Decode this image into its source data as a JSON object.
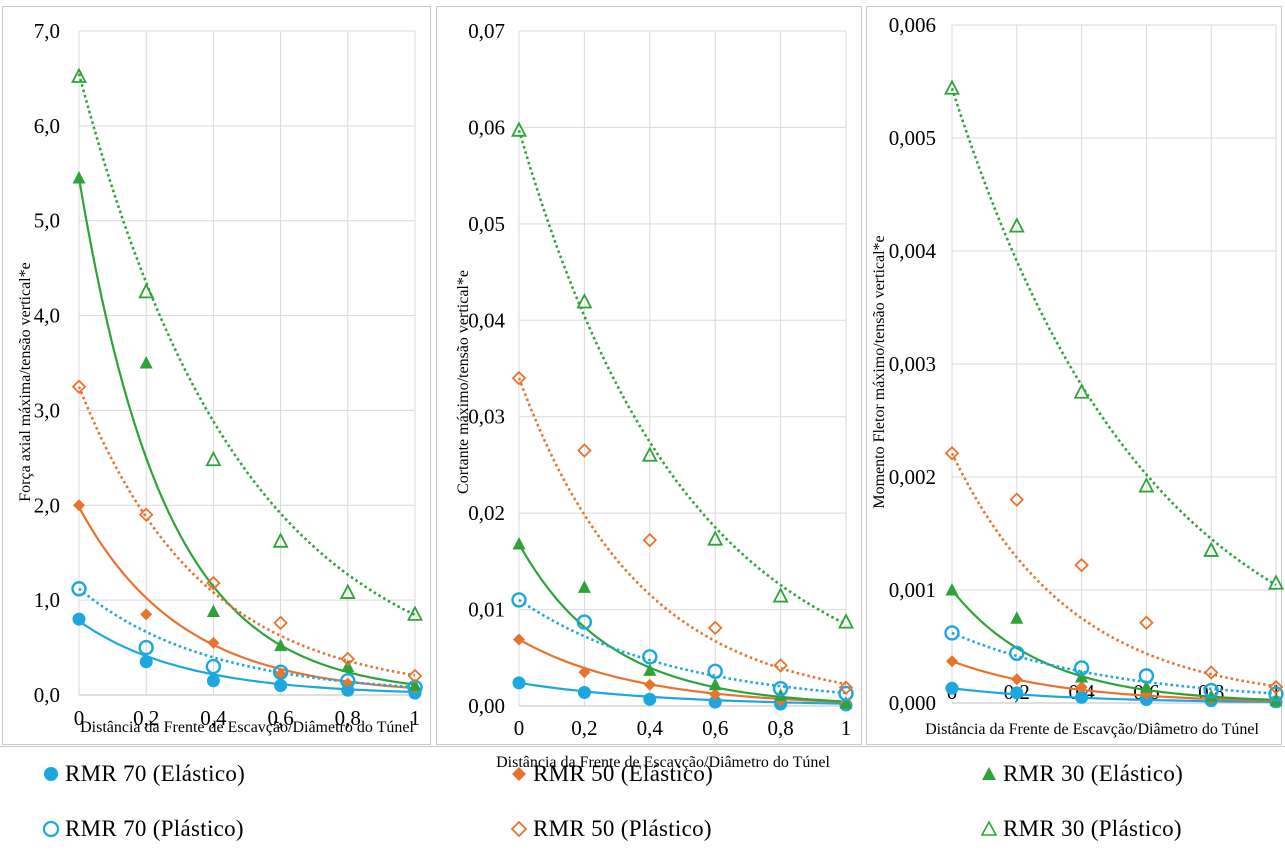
{
  "colors": {
    "rmr70": "#1ca7e0",
    "rmr50": "#e8732e",
    "rmr30": "#2ea33a",
    "grid": "#d9d9d9",
    "frame": "#c8c8c8"
  },
  "legend": [
    {
      "label": "RMR 70 (Elástico)",
      "marker": "filled-circle",
      "color": "#1ca7e0"
    },
    {
      "label": "RMR 50 (Elástico)",
      "marker": "filled-diamond",
      "color": "#e8732e"
    },
    {
      "label": "RMR 30 (Elástico)",
      "marker": "filled-triangle",
      "color": "#2ea33a"
    },
    {
      "label": "RMR 70 (Plástico)",
      "marker": "open-circle",
      "color": "#1ca7e0"
    },
    {
      "label": "RMR 50 (Plástico)",
      "marker": "open-diamond",
      "color": "#e8732e"
    },
    {
      "label": "RMR 30 (Plástico)",
      "marker": "open-triangle",
      "color": "#2ea33a"
    }
  ],
  "chart_data": [
    {
      "type": "scatter",
      "xlabel": "Distância da Frente de Escavção/Diâmetro do Túnel",
      "ylabel": "Força axial máxima/tensão vertical*e",
      "xlim": [
        0,
        1
      ],
      "ylim": [
        0,
        7
      ],
      "xticks": [
        "0",
        "0,2",
        "0,4",
        "0,6",
        "0,8",
        "1"
      ],
      "yticks": [
        "0,0",
        "1,0",
        "2,0",
        "3,0",
        "4,0",
        "5,0",
        "6,0",
        "7,0"
      ],
      "grid": true,
      "x": [
        0,
        0.2,
        0.4,
        0.6,
        0.8,
        1
      ],
      "series": [
        {
          "name": "RMR 70 (Elástico)",
          "values": [
            0.8,
            0.35,
            0.15,
            0.1,
            0.05,
            0.02
          ]
        },
        {
          "name": "RMR 50 (Elástico)",
          "values": [
            2.0,
            0.85,
            0.55,
            0.22,
            0.12,
            0.06
          ]
        },
        {
          "name": "RMR 30 (Elástico)",
          "values": [
            5.45,
            3.5,
            0.88,
            0.52,
            0.3,
            0.1
          ]
        },
        {
          "name": "RMR 70 (Plástico)",
          "values": [
            1.12,
            0.5,
            0.3,
            0.24,
            0.15,
            0.08
          ]
        },
        {
          "name": "RMR 50 (Plástico)",
          "values": [
            3.25,
            1.9,
            1.18,
            0.76,
            0.38,
            0.2
          ]
        },
        {
          "name": "RMR 30 (Plástico)",
          "values": [
            6.52,
            4.25,
            2.48,
            1.62,
            1.08,
            0.85
          ]
        }
      ],
      "trendlines": [
        {
          "series": "RMR 70 (Elástico)",
          "style": "solid",
          "a": 0.78,
          "b": 3.2
        },
        {
          "series": "RMR 50 (Elástico)",
          "style": "solid",
          "a": 1.98,
          "b": 3.3
        },
        {
          "series": "RMR 30 (Elástico)",
          "style": "solid",
          "a": 5.45,
          "b": 3.9
        },
        {
          "series": "RMR 70 (Plástico)",
          "style": "dotted",
          "a": 1.12,
          "b": 2.6
        },
        {
          "series": "RMR 50 (Plástico)",
          "style": "dotted",
          "a": 3.25,
          "b": 2.75
        },
        {
          "series": "RMR 30 (Plástico)",
          "style": "dotted",
          "a": 6.55,
          "b": 2.05
        }
      ]
    },
    {
      "type": "scatter",
      "xlabel": "Distância da Frente de Escavção/Diâmetro do Túnel",
      "ylabel": "Cortante máximo/tensão vertical*e",
      "xlim": [
        0,
        1
      ],
      "ylim": [
        0,
        0.07
      ],
      "xticks": [
        "0",
        "0,2",
        "0,4",
        "0,6",
        "0,8",
        "1"
      ],
      "yticks": [
        "0,00",
        "0,01",
        "0,02",
        "0,03",
        "0,04",
        "0,05",
        "0,06",
        "0,07"
      ],
      "grid": true,
      "x": [
        0,
        0.2,
        0.4,
        0.6,
        0.8,
        1
      ],
      "series": [
        {
          "name": "RMR 70 (Elástico)",
          "values": [
            0.0024,
            0.0014,
            0.0007,
            0.0004,
            0.0002,
            0.0001
          ]
        },
        {
          "name": "RMR 50 (Elástico)",
          "values": [
            0.0069,
            0.0035,
            0.0022,
            0.0012,
            0.0006,
            0.0003
          ]
        },
        {
          "name": "RMR 30 (Elástico)",
          "values": [
            0.0168,
            0.0123,
            0.0037,
            0.0022,
            0.0011,
            0.0003
          ]
        },
        {
          "name": "RMR 70 (Plástico)",
          "values": [
            0.011,
            0.0087,
            0.0051,
            0.0036,
            0.0018,
            0.0013
          ]
        },
        {
          "name": "RMR 50 (Plástico)",
          "values": [
            0.034,
            0.0265,
            0.0172,
            0.0081,
            0.0042,
            0.0019
          ]
        },
        {
          "name": "RMR 30 (Plástico)",
          "values": [
            0.0597,
            0.0419,
            0.026,
            0.0173,
            0.0114,
            0.0087
          ]
        }
      ],
      "trendlines": [
        {
          "series": "RMR 70 (Elástico)",
          "style": "solid",
          "a": 0.0024,
          "b": 2.3
        },
        {
          "series": "RMR 50 (Elástico)",
          "style": "solid",
          "a": 0.0069,
          "b": 2.8
        },
        {
          "series": "RMR 30 (Elástico)",
          "style": "solid",
          "a": 0.0168,
          "b": 3.6
        },
        {
          "series": "RMR 70 (Plástico)",
          "style": "dotted",
          "a": 0.011,
          "b": 2.1
        },
        {
          "series": "RMR 50 (Plástico)",
          "style": "dotted",
          "a": 0.034,
          "b": 2.7
        },
        {
          "series": "RMR 30 (Plástico)",
          "style": "dotted",
          "a": 0.0597,
          "b": 1.95
        }
      ]
    },
    {
      "type": "scatter",
      "xlabel": "Distância da Frente de Escavção/Diâmetro do Túnel",
      "ylabel": "Momento Fletor máximo/tensão vertical*e",
      "xlim": [
        0,
        1
      ],
      "ylim": [
        0,
        0.006
      ],
      "xticks": [
        "0",
        "0,2",
        "0,4",
        "0,6",
        "0,8",
        "1"
      ],
      "yticks": [
        "0,000",
        "0,001",
        "0,002",
        "0,003",
        "0,004",
        "0,005",
        "0,006"
      ],
      "grid": true,
      "x": [
        0,
        0.2,
        0.4,
        0.6,
        0.8,
        1
      ],
      "series": [
        {
          "name": "RMR 70 (Elástico)",
          "values": [
            0.00013,
            9e-05,
            5e-05,
            3e-05,
            2e-05,
            1e-05
          ]
        },
        {
          "name": "RMR 50 (Elástico)",
          "values": [
            0.00037,
            0.00021,
            0.00014,
            8e-05,
            4e-05,
            2e-05
          ]
        },
        {
          "name": "RMR 30 (Elástico)",
          "values": [
            0.001,
            0.00075,
            0.00023,
            0.00014,
            6e-05,
            2e-05
          ]
        },
        {
          "name": "RMR 70 (Plástico)",
          "values": [
            0.00062,
            0.00044,
            0.00031,
            0.00024,
            0.00011,
            8e-05
          ]
        },
        {
          "name": "RMR 50 (Plástico)",
          "values": [
            0.00221,
            0.0018,
            0.00122,
            0.00071,
            0.00027,
            0.00014
          ]
        },
        {
          "name": "RMR 30 (Plástico)",
          "values": [
            0.00544,
            0.00422,
            0.00275,
            0.00192,
            0.00135,
            0.00106
          ]
        }
      ],
      "trendlines": [
        {
          "series": "RMR 70 (Elástico)",
          "style": "solid",
          "a": 0.00013,
          "b": 2.6
        },
        {
          "series": "RMR 50 (Elástico)",
          "style": "solid",
          "a": 0.00037,
          "b": 2.9
        },
        {
          "series": "RMR 30 (Elástico)",
          "style": "solid",
          "a": 0.001,
          "b": 3.6
        },
        {
          "series": "RMR 70 (Plástico)",
          "style": "dotted",
          "a": 0.00062,
          "b": 2.0
        },
        {
          "series": "RMR 50 (Plástico)",
          "style": "dotted",
          "a": 0.00221,
          "b": 2.7
        },
        {
          "series": "RMR 30 (Plástico)",
          "style": "dotted",
          "a": 0.00544,
          "b": 1.65
        }
      ]
    }
  ]
}
